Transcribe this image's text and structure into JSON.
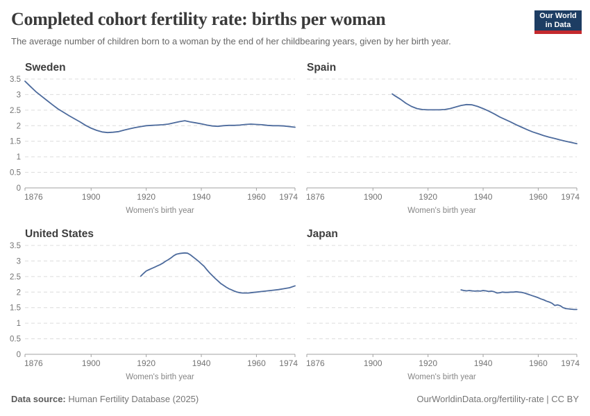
{
  "header": {
    "title": "Completed cohort fertility rate: births per woman",
    "subtitle": "The average number of children born to a woman by the end of her childbearing years, given by her birth year.",
    "logo_line1": "Our World",
    "logo_line2": "in Data"
  },
  "footer": {
    "source_label": "Data source:",
    "source_value": "Human Fertility Database (2025)",
    "attribution": "OurWorldinData.org/fertility-rate | CC BY"
  },
  "colors": {
    "line": "#4C6A9C",
    "gridline": "#dcdcdc",
    "axis": "#a1a1a1",
    "tick_label": "#737373",
    "axis_label": "#858585",
    "panel_title": "#3d3d3d",
    "logo_bg": "#1d3d63",
    "logo_bar": "#c4292e"
  },
  "chart_data": [
    {
      "type": "line",
      "title": "Sweden",
      "xlabel": "Women's birth year",
      "xlim": [
        1876,
        1974
      ],
      "ylim": [
        0,
        3.5
      ],
      "x_ticks": [
        1876,
        1900,
        1920,
        1940,
        1960,
        1974
      ],
      "x_tick_labels": [
        "1876",
        "1900",
        "1920",
        "1940",
        "1960",
        "1974"
      ],
      "y_ticks": [
        0,
        0.5,
        1,
        1.5,
        2,
        2.5,
        3,
        3.5
      ],
      "y_tick_labels": [
        "0",
        "0.5",
        "1",
        "1.5",
        "2",
        "2.5",
        "3",
        "3.5"
      ],
      "show_y_tick_labels": true,
      "grid": true,
      "points": [
        [
          1876,
          3.43
        ],
        [
          1878,
          3.26
        ],
        [
          1880,
          3.09
        ],
        [
          1882,
          2.95
        ],
        [
          1884,
          2.81
        ],
        [
          1886,
          2.67
        ],
        [
          1888,
          2.54
        ],
        [
          1890,
          2.43
        ],
        [
          1892,
          2.32
        ],
        [
          1894,
          2.22
        ],
        [
          1896,
          2.12
        ],
        [
          1898,
          2.01
        ],
        [
          1900,
          1.92
        ],
        [
          1902,
          1.85
        ],
        [
          1904,
          1.8
        ],
        [
          1906,
          1.78
        ],
        [
          1908,
          1.79
        ],
        [
          1910,
          1.81
        ],
        [
          1912,
          1.86
        ],
        [
          1914,
          1.9
        ],
        [
          1916,
          1.94
        ],
        [
          1918,
          1.97
        ],
        [
          1920,
          2.0
        ],
        [
          1922,
          2.01
        ],
        [
          1924,
          2.02
        ],
        [
          1926,
          2.03
        ],
        [
          1928,
          2.05
        ],
        [
          1930,
          2.09
        ],
        [
          1932,
          2.13
        ],
        [
          1934,
          2.16
        ],
        [
          1936,
          2.12
        ],
        [
          1938,
          2.09
        ],
        [
          1940,
          2.06
        ],
        [
          1942,
          2.02
        ],
        [
          1944,
          1.99
        ],
        [
          1946,
          1.98
        ],
        [
          1948,
          2.0
        ],
        [
          1950,
          2.01
        ],
        [
          1952,
          2.01
        ],
        [
          1954,
          2.02
        ],
        [
          1956,
          2.04
        ],
        [
          1958,
          2.05
        ],
        [
          1960,
          2.04
        ],
        [
          1962,
          2.03
        ],
        [
          1964,
          2.01
        ],
        [
          1966,
          2.0
        ],
        [
          1968,
          2.0
        ],
        [
          1970,
          1.99
        ],
        [
          1972,
          1.97
        ],
        [
          1974,
          1.95
        ]
      ]
    },
    {
      "type": "line",
      "title": "Spain",
      "xlabel": "Women's birth year",
      "xlim": [
        1876,
        1974
      ],
      "ylim": [
        0,
        3.5
      ],
      "x_ticks": [
        1876,
        1900,
        1920,
        1940,
        1960,
        1974
      ],
      "x_tick_labels": [
        "1876",
        "1900",
        "1920",
        "1940",
        "1960",
        "1974"
      ],
      "y_ticks": [
        0,
        0.5,
        1,
        1.5,
        2,
        2.5,
        3,
        3.5
      ],
      "y_tick_labels": [
        "0",
        "0.5",
        "1",
        "1.5",
        "2",
        "2.5",
        "3",
        "3.5"
      ],
      "show_y_tick_labels": false,
      "grid": true,
      "points": [
        [
          1907,
          3.02
        ],
        [
          1908,
          2.96
        ],
        [
          1910,
          2.85
        ],
        [
          1912,
          2.72
        ],
        [
          1914,
          2.62
        ],
        [
          1916,
          2.55
        ],
        [
          1918,
          2.52
        ],
        [
          1920,
          2.51
        ],
        [
          1922,
          2.51
        ],
        [
          1924,
          2.51
        ],
        [
          1926,
          2.52
        ],
        [
          1928,
          2.55
        ],
        [
          1930,
          2.6
        ],
        [
          1932,
          2.65
        ],
        [
          1934,
          2.68
        ],
        [
          1936,
          2.67
        ],
        [
          1938,
          2.62
        ],
        [
          1940,
          2.55
        ],
        [
          1942,
          2.47
        ],
        [
          1944,
          2.38
        ],
        [
          1946,
          2.28
        ],
        [
          1948,
          2.2
        ],
        [
          1950,
          2.12
        ],
        [
          1952,
          2.03
        ],
        [
          1954,
          1.95
        ],
        [
          1956,
          1.87
        ],
        [
          1958,
          1.8
        ],
        [
          1960,
          1.74
        ],
        [
          1962,
          1.68
        ],
        [
          1964,
          1.63
        ],
        [
          1966,
          1.59
        ],
        [
          1968,
          1.54
        ],
        [
          1970,
          1.5
        ],
        [
          1972,
          1.46
        ],
        [
          1974,
          1.42
        ]
      ]
    },
    {
      "type": "line",
      "title": "United States",
      "xlabel": "Women's birth year",
      "xlim": [
        1876,
        1974
      ],
      "ylim": [
        0,
        3.5
      ],
      "x_ticks": [
        1876,
        1900,
        1920,
        1940,
        1960,
        1974
      ],
      "x_tick_labels": [
        "1876",
        "1900",
        "1920",
        "1940",
        "1960",
        "1974"
      ],
      "y_ticks": [
        0,
        0.5,
        1,
        1.5,
        2,
        2.5,
        3,
        3.5
      ],
      "y_tick_labels": [
        "0",
        "0.5",
        "1",
        "1.5",
        "2",
        "2.5",
        "3",
        "3.5"
      ],
      "show_y_tick_labels": true,
      "grid": true,
      "points": [
        [
          1918,
          2.51
        ],
        [
          1919,
          2.6
        ],
        [
          1920,
          2.68
        ],
        [
          1921,
          2.72
        ],
        [
          1922,
          2.76
        ],
        [
          1923,
          2.8
        ],
        [
          1924,
          2.84
        ],
        [
          1925,
          2.88
        ],
        [
          1926,
          2.93
        ],
        [
          1927,
          2.99
        ],
        [
          1928,
          3.04
        ],
        [
          1929,
          3.1
        ],
        [
          1930,
          3.17
        ],
        [
          1931,
          3.22
        ],
        [
          1932,
          3.24
        ],
        [
          1933,
          3.25
        ],
        [
          1934,
          3.26
        ],
        [
          1935,
          3.25
        ],
        [
          1936,
          3.2
        ],
        [
          1937,
          3.13
        ],
        [
          1938,
          3.06
        ],
        [
          1939,
          2.99
        ],
        [
          1940,
          2.91
        ],
        [
          1941,
          2.83
        ],
        [
          1942,
          2.72
        ],
        [
          1943,
          2.62
        ],
        [
          1944,
          2.53
        ],
        [
          1945,
          2.44
        ],
        [
          1946,
          2.36
        ],
        [
          1947,
          2.28
        ],
        [
          1948,
          2.22
        ],
        [
          1949,
          2.16
        ],
        [
          1950,
          2.11
        ],
        [
          1951,
          2.07
        ],
        [
          1952,
          2.03
        ],
        [
          1953,
          2.0
        ],
        [
          1954,
          1.98
        ],
        [
          1955,
          1.97
        ],
        [
          1956,
          1.97
        ],
        [
          1957,
          1.97
        ],
        [
          1958,
          1.98
        ],
        [
          1959,
          1.99
        ],
        [
          1960,
          2.0
        ],
        [
          1962,
          2.02
        ],
        [
          1964,
          2.04
        ],
        [
          1966,
          2.06
        ],
        [
          1968,
          2.08
        ],
        [
          1970,
          2.11
        ],
        [
          1972,
          2.14
        ],
        [
          1974,
          2.2
        ]
      ]
    },
    {
      "type": "line",
      "title": "Japan",
      "xlabel": "Women's birth year",
      "xlim": [
        1876,
        1974
      ],
      "ylim": [
        0,
        3.5
      ],
      "x_ticks": [
        1876,
        1900,
        1920,
        1940,
        1960,
        1974
      ],
      "x_tick_labels": [
        "1876",
        "1900",
        "1920",
        "1940",
        "1960",
        "1974"
      ],
      "y_ticks": [
        0,
        0.5,
        1,
        1.5,
        2,
        2.5,
        3,
        3.5
      ],
      "y_tick_labels": [
        "0",
        "0.5",
        "1",
        "1.5",
        "2",
        "2.5",
        "3",
        "3.5"
      ],
      "show_y_tick_labels": false,
      "grid": true,
      "points": [
        [
          1932,
          2.07
        ],
        [
          1933,
          2.05
        ],
        [
          1934,
          2.04
        ],
        [
          1935,
          2.05
        ],
        [
          1936,
          2.04
        ],
        [
          1937,
          2.03
        ],
        [
          1938,
          2.04
        ],
        [
          1939,
          2.03
        ],
        [
          1940,
          2.05
        ],
        [
          1941,
          2.04
        ],
        [
          1942,
          2.02
        ],
        [
          1943,
          2.03
        ],
        [
          1944,
          2.01
        ],
        [
          1945,
          1.97
        ],
        [
          1946,
          1.98
        ],
        [
          1947,
          2.0
        ],
        [
          1948,
          1.99
        ],
        [
          1949,
          1.99
        ],
        [
          1950,
          2.0
        ],
        [
          1951,
          2.0
        ],
        [
          1952,
          2.01
        ],
        [
          1953,
          2.0
        ],
        [
          1954,
          1.99
        ],
        [
          1955,
          1.97
        ],
        [
          1956,
          1.94
        ],
        [
          1957,
          1.91
        ],
        [
          1958,
          1.88
        ],
        [
          1959,
          1.85
        ],
        [
          1960,
          1.82
        ],
        [
          1961,
          1.78
        ],
        [
          1962,
          1.75
        ],
        [
          1963,
          1.71
        ],
        [
          1964,
          1.68
        ],
        [
          1965,
          1.64
        ],
        [
          1966,
          1.57
        ],
        [
          1967,
          1.59
        ],
        [
          1968,
          1.56
        ],
        [
          1969,
          1.5
        ],
        [
          1970,
          1.47
        ],
        [
          1971,
          1.46
        ],
        [
          1972,
          1.45
        ],
        [
          1973,
          1.44
        ],
        [
          1974,
          1.44
        ]
      ]
    }
  ]
}
